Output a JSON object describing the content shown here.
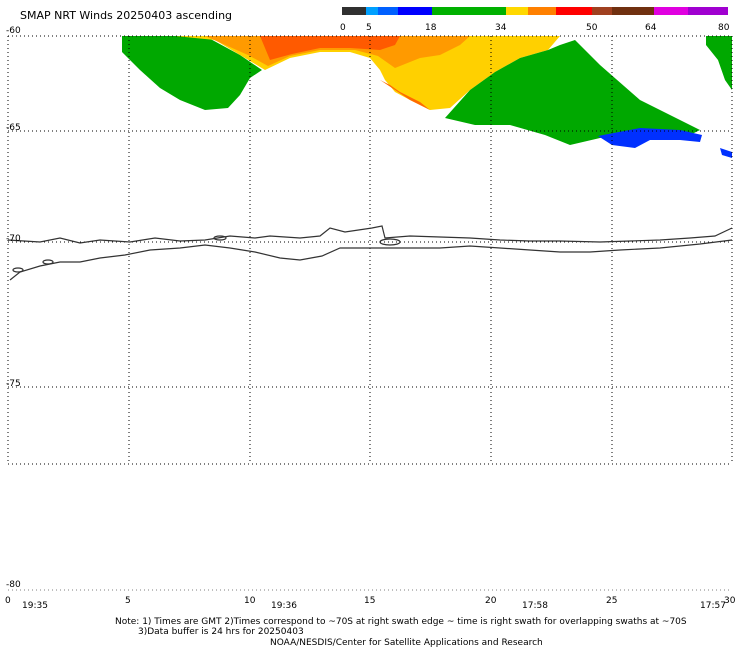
{
  "title": "SMAP NRT Winds 20250403 ascending",
  "colorbar": {
    "ticks": [
      "0",
      "5",
      "18",
      "34",
      "50",
      "64",
      "80"
    ],
    "colors": [
      "#606060",
      "#00c8ff",
      "#00b000",
      "#ffe000",
      "#ff0000",
      "#8a4a2a",
      "#d000d0"
    ]
  },
  "axes": {
    "y_labels": [
      "-60",
      "-65",
      "-70",
      "-75",
      "-80"
    ],
    "x_labels": [
      "0",
      "5",
      "10",
      "15",
      "20",
      "25",
      "30"
    ],
    "times": [
      "19:35",
      "19:36",
      "17:58",
      "17:57"
    ]
  },
  "notes": {
    "line1": "Note: 1) Times are GMT 2)Times correspond to ~70S at right swath edge ~ time is right swath for overlapping swaths at ~70S",
    "line2": "3)Data buffer is 24 hrs for 20250403",
    "line3": "NOAA/NESDIS/Center for Satellite Applications and Research"
  },
  "legend_colors": {
    "green": "#00a800",
    "yellow": "#ffd800",
    "orange": "#ff8800",
    "red": "#ff3000",
    "blue": "#0030ff"
  }
}
